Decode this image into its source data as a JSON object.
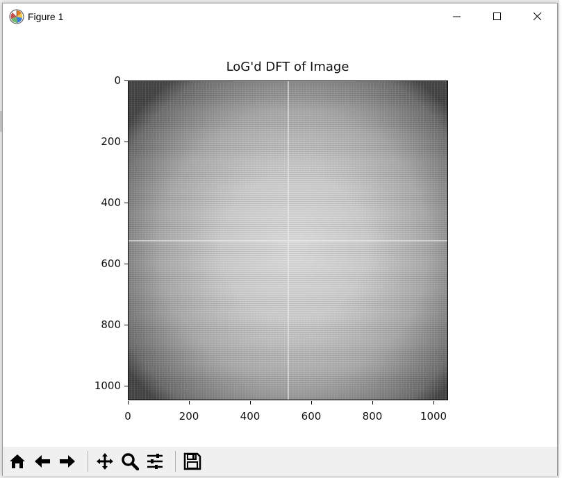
{
  "window": {
    "title": "Figure 1",
    "controls": {
      "minimize": "minimize",
      "maximize": "maximize",
      "close": "close"
    }
  },
  "plot": {
    "title": "LoG'd DFT of Image",
    "y_ticks": [
      "0",
      "200",
      "400",
      "600",
      "800",
      "1000"
    ],
    "x_ticks": [
      "0",
      "200",
      "400",
      "600",
      "800",
      "1000"
    ]
  },
  "chart_data": {
    "type": "heatmap",
    "title": "LoG'd DFT of Image",
    "xlabel": "",
    "ylabel": "",
    "xlim": [
      0,
      1050
    ],
    "ylim": [
      1050,
      0
    ],
    "x_ticks": [
      0,
      200,
      400,
      600,
      800,
      1000
    ],
    "y_ticks": [
      0,
      200,
      400,
      600,
      800,
      1000
    ],
    "colormap": "gray",
    "grid": false
  },
  "toolbar": {
    "buttons": [
      {
        "name": "home-button",
        "icon": "home-icon"
      },
      {
        "name": "back-button",
        "icon": "arrow-left-icon"
      },
      {
        "name": "forward-button",
        "icon": "arrow-right-icon"
      },
      {
        "name": "pan-button",
        "icon": "move-icon"
      },
      {
        "name": "zoom-button",
        "icon": "magnifier-icon"
      },
      {
        "name": "configure-subplots-button",
        "icon": "sliders-icon"
      },
      {
        "name": "save-button",
        "icon": "floppy-disk-icon"
      }
    ]
  }
}
